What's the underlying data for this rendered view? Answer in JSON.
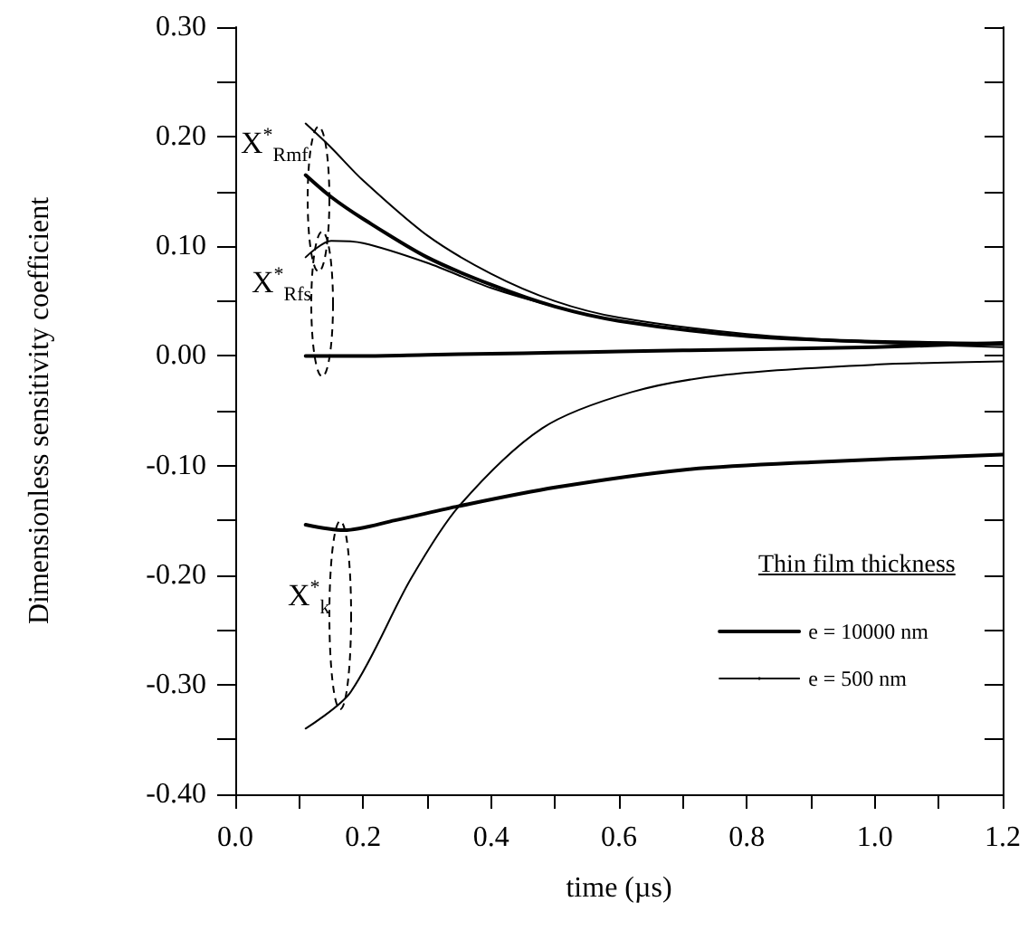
{
  "chart_data": {
    "type": "line",
    "xlabel": "time (µs)",
    "ylabel": "Dimensionless sensitivity coefficient",
    "legend_title": "Thin film thickness",
    "legend": "bottom right",
    "grid": false,
    "marker": "none",
    "line_style": "solid",
    "xlim": [
      0,
      1.2
    ],
    "ylim": [
      -0.4,
      0.3
    ],
    "xticks": [
      {
        "value": 0,
        "label": "0.0"
      },
      {
        "value": 0.1,
        "label": null
      },
      {
        "value": 0.2,
        "label": "0.2"
      },
      {
        "value": 0.3,
        "label": null
      },
      {
        "value": 0.4,
        "label": "0.4"
      },
      {
        "value": 0.5,
        "label": null
      },
      {
        "value": 0.6,
        "label": "0.6"
      },
      {
        "value": 0.7,
        "label": null
      },
      {
        "value": 0.8,
        "label": "0.8"
      },
      {
        "value": 0.9,
        "label": null
      },
      {
        "value": 1,
        "label": "1.0"
      },
      {
        "value": 1.1,
        "label": null
      },
      {
        "value": 1.2,
        "label": "1.2"
      }
    ],
    "yticks": [
      {
        "value": -0.4,
        "label": "-0.40"
      },
      {
        "value": -0.35,
        "label": null
      },
      {
        "value": -0.3,
        "label": "-0.30"
      },
      {
        "value": -0.25,
        "label": null
      },
      {
        "value": -0.2,
        "label": "-0.20"
      },
      {
        "value": -0.15,
        "label": null
      },
      {
        "value": -0.1,
        "label": "-0.10"
      },
      {
        "value": -0.05,
        "label": null
      },
      {
        "value": 0,
        "label": "0.00"
      },
      {
        "value": 0.05,
        "label": null
      },
      {
        "value": 0.1,
        "label": "0.10"
      },
      {
        "value": 0.15,
        "label": null
      },
      {
        "value": 0.2,
        "label": "0.20"
      },
      {
        "value": 0.25,
        "label": null
      },
      {
        "value": 0.3,
        "label": "0.30"
      }
    ],
    "series": [
      {
        "name": "e = 10000 nm",
        "color": "#000000",
        "x": [
          0.11,
          0.15,
          0.2,
          0.3,
          0.4,
          0.5,
          0.6,
          0.8,
          1.0,
          1.2
        ],
        "values": [
          0.165,
          0.145,
          0.125,
          0.09,
          0.065,
          0.045,
          0.032,
          0.018,
          0.013,
          0.011
        ]
      },
      {
        "name": "e = 500 nm",
        "color": "#000000",
        "x": [
          0.11,
          0.15,
          0.2,
          0.3,
          0.4,
          0.5,
          0.6,
          0.8,
          1.0,
          1.2
        ],
        "values": [
          0.212,
          0.19,
          0.16,
          0.11,
          0.075,
          0.05,
          0.035,
          0.02,
          0.013,
          0.01
        ]
      },
      {
        "color": "#000000",
        "x": [
          0.11,
          0.2,
          0.3,
          0.4,
          0.5,
          0.6,
          0.8,
          1.0,
          1.2
        ],
        "values": [
          0,
          0,
          0.001,
          0.002,
          0.003,
          0.004,
          0.006,
          0.008,
          0.012
        ]
      },
      {
        "color": "#000000",
        "x": [
          0.11,
          0.15,
          0.2,
          0.3,
          0.4,
          0.5,
          0.6,
          0.8,
          1.0,
          1.2
        ],
        "values": [
          0.09,
          0.105,
          0.103,
          0.085,
          0.062,
          0.045,
          0.032,
          0.018,
          0.012,
          0.008
        ]
      },
      {
        "color": "#000000",
        "x": [
          0.11,
          0.17,
          0.25,
          0.35,
          0.5,
          0.7,
          0.9,
          1.2
        ],
        "values": [
          -0.154,
          -0.159,
          -0.15,
          -0.137,
          -0.12,
          -0.104,
          -0.097,
          -0.09
        ]
      },
      {
        "color": "#000000",
        "x": [
          0.11,
          0.18,
          0.275,
          0.35,
          0.48,
          0.62,
          0.77,
          1.0,
          1.2
        ],
        "values": [
          -0.34,
          -0.307,
          -0.203,
          -0.137,
          -0.066,
          -0.033,
          -0.017,
          -0.008,
          -0.005
        ]
      }
    ],
    "annotations": [
      "X$^{*}$$_{Rmf}$",
      "X$^{*}$$_{Rfs}$",
      "X$^{*}$$_{k}$"
    ]
  }
}
